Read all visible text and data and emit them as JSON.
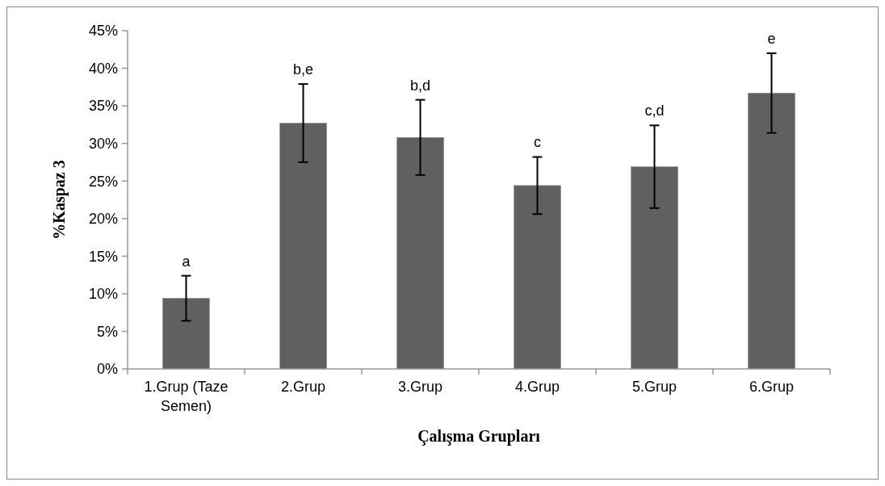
{
  "chart_data": {
    "type": "bar",
    "xlabel": "Çalışma Grupları",
    "ylabel": "%Kaspaz 3",
    "categories": [
      "1.Grup (Taze Semen)",
      "2.Grup",
      "3.Grup",
      "4.Grup",
      "5.Grup",
      "6.Grup"
    ],
    "values": [
      9.4,
      32.7,
      30.8,
      24.4,
      26.9,
      36.7
    ],
    "errors": [
      3.0,
      5.2,
      5.0,
      3.8,
      5.5,
      5.3
    ],
    "color": "#606060",
    "ylim": [
      0,
      45
    ],
    "yticks": [
      {
        "value": 0,
        "label": "0%"
      },
      {
        "value": 5,
        "label": "5%"
      },
      {
        "value": 10,
        "label": "10%"
      },
      {
        "value": 15,
        "label": "15%"
      },
      {
        "value": 20,
        "label": "20%"
      },
      {
        "value": 25,
        "label": "25%"
      },
      {
        "value": 30,
        "label": "30%"
      },
      {
        "value": 35,
        "label": "35%"
      },
      {
        "value": 40,
        "label": "40%"
      },
      {
        "value": 45,
        "label": "45%"
      }
    ],
    "annotations": [
      {
        "text": "a",
        "x": "1.Grup (Taze Semen)",
        "y": 12.4
      },
      {
        "text": "b,e",
        "x": "2.Grup",
        "y": 37.9
      },
      {
        "text": "b,d",
        "x": "3.Grup",
        "y": 35.8
      },
      {
        "text": "c",
        "x": "4.Grup",
        "y": 28.2
      },
      {
        "text": "c,d",
        "x": "5.Grup",
        "y": 32.4
      },
      {
        "text": "e",
        "x": "6.Grup",
        "y": 42.0
      }
    ],
    "grid": false
  }
}
